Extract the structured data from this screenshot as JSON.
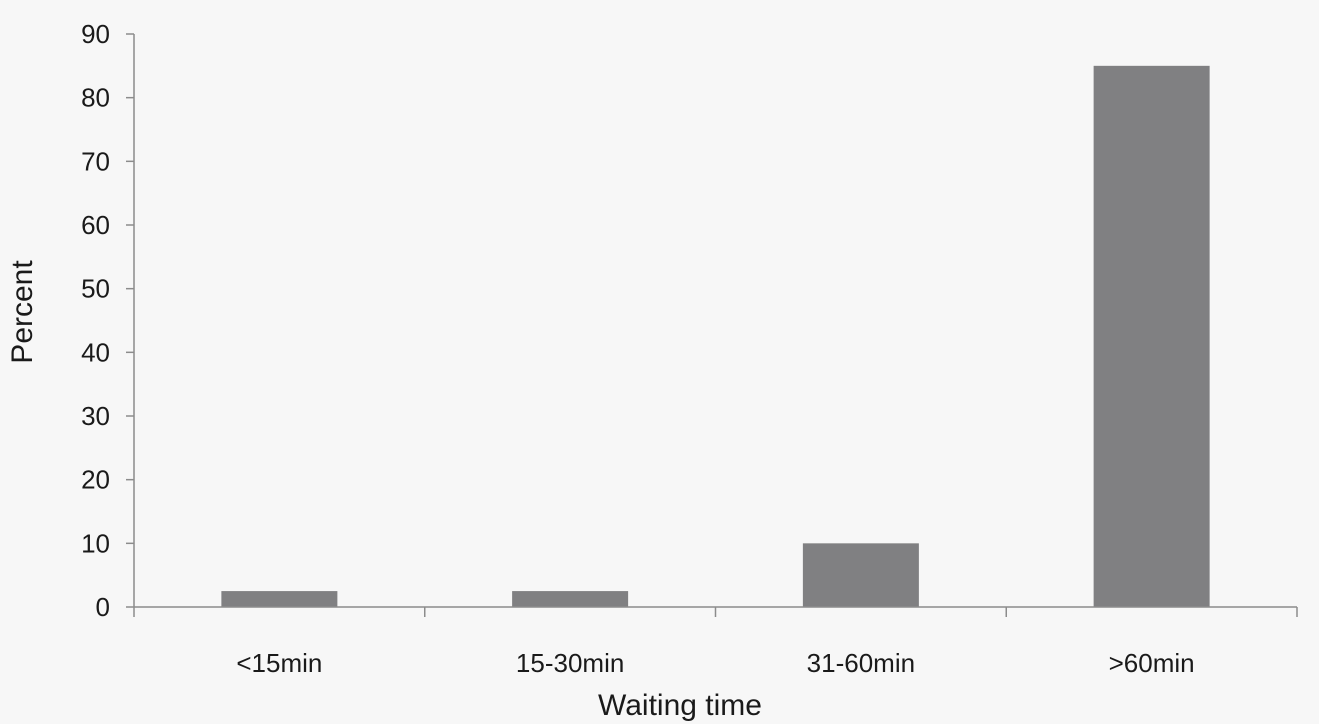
{
  "chart_data": {
    "type": "bar",
    "title": "",
    "xlabel": "Waiting time",
    "ylabel": "Percent",
    "categories": [
      "<15min",
      "15-30min",
      "31-60min",
      ">60min"
    ],
    "values": [
      2.5,
      2.5,
      10,
      85
    ],
    "ylim": [
      0,
      90
    ],
    "yticks": [
      0,
      10,
      20,
      30,
      40,
      50,
      60,
      70,
      80,
      90
    ],
    "grid": false,
    "legend": "none",
    "colors": {
      "bar": "#808082",
      "axis": "#8c8c8c",
      "background": "#f7f7f7"
    }
  }
}
